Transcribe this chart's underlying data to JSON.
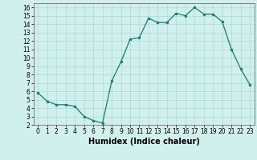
{
  "x": [
    0,
    1,
    2,
    3,
    4,
    5,
    6,
    7,
    8,
    9,
    10,
    11,
    12,
    13,
    14,
    15,
    16,
    17,
    18,
    19,
    20,
    21,
    22,
    23
  ],
  "y": [
    5.8,
    4.8,
    4.4,
    4.4,
    4.2,
    3.0,
    2.5,
    2.2,
    7.2,
    9.5,
    12.2,
    12.4,
    14.7,
    14.2,
    14.2,
    15.3,
    15.0,
    16.0,
    15.2,
    15.2,
    14.3,
    11.0,
    8.7,
    6.8
  ],
  "xlabel": "Humidex (Indice chaleur)",
  "xlim": [
    -0.5,
    23.5
  ],
  "ylim": [
    2,
    16.5
  ],
  "yticks": [
    2,
    3,
    4,
    5,
    6,
    7,
    8,
    9,
    10,
    11,
    12,
    13,
    14,
    15,
    16
  ],
  "xticks": [
    0,
    1,
    2,
    3,
    4,
    5,
    6,
    7,
    8,
    9,
    10,
    11,
    12,
    13,
    14,
    15,
    16,
    17,
    18,
    19,
    20,
    21,
    22,
    23
  ],
  "line_color": "#1a7a6e",
  "marker_color": "#1a7a6e",
  "bg_color": "#cff0ec",
  "grid_color": "#b0d8d4",
  "tick_label_fontsize": 5.5,
  "xlabel_fontsize": 7.0
}
